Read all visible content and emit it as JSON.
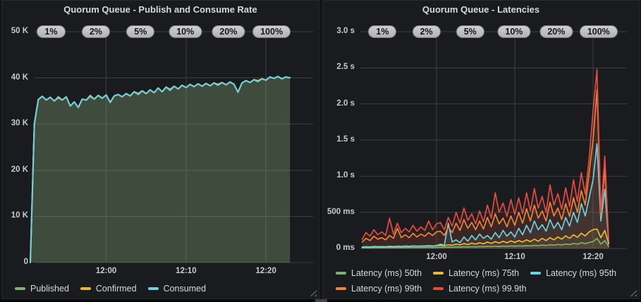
{
  "chart_data": [
    {
      "type": "area",
      "title": "Quorum Queue - Publish and Consume Rate",
      "ylim": [
        0,
        50000
      ],
      "y_ticks": [
        {
          "value": 0,
          "label": "0"
        },
        {
          "value": 10000,
          "label": "10 K"
        },
        {
          "value": 20000,
          "label": "20 K"
        },
        {
          "value": 30000,
          "label": "30 K"
        },
        {
          "value": 40000,
          "label": "40 K"
        },
        {
          "value": 50000,
          "label": "50 K"
        }
      ],
      "x_ticks": [
        {
          "minute": 9.5,
          "label": "12:00"
        },
        {
          "minute": 19.5,
          "label": "12:10"
        },
        {
          "minute": 29.5,
          "label": "12:20"
        }
      ],
      "annotations": [
        {
          "minute": 2.6,
          "label": "1%"
        },
        {
          "minute": 8.2,
          "label": "2%"
        },
        {
          "minute": 13.8,
          "label": "5%"
        },
        {
          "minute": 19.4,
          "label": "10%"
        },
        {
          "minute": 24.8,
          "label": "20%"
        },
        {
          "minute": 30.2,
          "label": "100%"
        }
      ],
      "t_start": 0,
      "t_step": 0.5,
      "legend_position": "bottom",
      "grid": true,
      "series": [
        {
          "name": "Published",
          "color": "#7EB26D",
          "values": [
            0,
            30000,
            35300,
            36000,
            35200,
            35800,
            35000,
            35700,
            35200,
            35900,
            33900,
            34800,
            33600,
            35400,
            35200,
            36000,
            35400,
            36200,
            35600,
            36300,
            34700,
            36100,
            36400,
            35900,
            36600,
            36100,
            37000,
            36400,
            37200,
            36600,
            37400,
            36800,
            37800,
            37000,
            38000,
            37300,
            38200,
            37600,
            38400,
            37900,
            38600,
            38100,
            38700,
            38200,
            38800,
            38300,
            38900,
            38400,
            39000,
            38500,
            39100,
            38600,
            36900,
            38900,
            39400,
            39000,
            39600,
            39200,
            39800,
            39500,
            40200,
            39900,
            40300,
            39800,
            40200,
            40000
          ]
        },
        {
          "name": "Confirmed",
          "color": "#EAB839",
          "values": [
            0,
            30000,
            35300,
            36000,
            35200,
            35800,
            35000,
            35900,
            35200,
            35900,
            33900,
            34800,
            33600,
            35400,
            35200,
            36200,
            35400,
            36200,
            35600,
            36300,
            34700,
            36100,
            36400,
            35900,
            36600,
            36100,
            37000,
            36600,
            37200,
            36600,
            37400,
            36800,
            37800,
            37000,
            38000,
            37500,
            38200,
            37600,
            38400,
            37900,
            38600,
            38100,
            38700,
            38200,
            38800,
            38300,
            38900,
            38600,
            39000,
            38500,
            39100,
            38600,
            36900,
            38900,
            39400,
            39000,
            39600,
            39400,
            39800,
            39500,
            40200,
            39900,
            40300,
            39800,
            40200,
            40000
          ]
        },
        {
          "name": "Consumed",
          "color": "#6ED0E0",
          "values": [
            0,
            30000,
            35300,
            36000,
            35200,
            35800,
            35000,
            35700,
            35200,
            35900,
            33900,
            34800,
            33600,
            35400,
            35200,
            36000,
            35400,
            36200,
            35600,
            36300,
            34700,
            36100,
            36400,
            35900,
            36600,
            36100,
            37000,
            36400,
            37200,
            36600,
            37400,
            36800,
            37800,
            37000,
            38000,
            37300,
            38200,
            37600,
            38400,
            37900,
            38600,
            38100,
            38700,
            38200,
            38800,
            38300,
            38900,
            38400,
            39000,
            38500,
            39100,
            38600,
            36900,
            38900,
            39400,
            39000,
            39600,
            39200,
            39800,
            39500,
            40200,
            39900,
            40300,
            39800,
            40200,
            40000
          ]
        }
      ]
    },
    {
      "type": "line",
      "title": "Quorum Queue - Latencies",
      "ylim": [
        0,
        3000
      ],
      "y_ticks": [
        {
          "value": 0,
          "label": "0 ms"
        },
        {
          "value": 500,
          "label": "500 ms"
        },
        {
          "value": 1000,
          "label": "1.0 s"
        },
        {
          "value": 1500,
          "label": "1.5 s"
        },
        {
          "value": 2000,
          "label": "2.0 s"
        },
        {
          "value": 2500,
          "label": "2.5 s"
        },
        {
          "value": 3000,
          "label": "3.0 s"
        }
      ],
      "x_ticks": [
        {
          "minute": 9.5,
          "label": "12:00"
        },
        {
          "minute": 19.5,
          "label": "12:10"
        },
        {
          "minute": 29.5,
          "label": "12:20"
        }
      ],
      "annotations": [
        {
          "minute": 2.6,
          "label": "1%"
        },
        {
          "minute": 8.2,
          "label": "2%"
        },
        {
          "minute": 13.8,
          "label": "5%"
        },
        {
          "minute": 19.4,
          "label": "10%"
        },
        {
          "minute": 24.8,
          "label": "20%"
        },
        {
          "minute": 30.2,
          "label": "100%"
        }
      ],
      "t_start": 0,
      "t_step": 0.5,
      "legend_position": "bottom",
      "grid": true,
      "series": [
        {
          "name": "Latency (ms) 50th",
          "color": "#7EB26D",
          "values": [
            8,
            10,
            9,
            12,
            10,
            11,
            10,
            12,
            11,
            13,
            12,
            14,
            12,
            15,
            13,
            14,
            15,
            16,
            14,
            16,
            18,
            16,
            20,
            18,
            22,
            19,
            24,
            20,
            26,
            22,
            28,
            24,
            30,
            26,
            32,
            28,
            34,
            30,
            36,
            32,
            38,
            34,
            40,
            36,
            44,
            38,
            48,
            42,
            52,
            46,
            56,
            50,
            62,
            55,
            70,
            60,
            80,
            68,
            85,
            95,
            140,
            60,
            110,
            25
          ]
        },
        {
          "name": "Latency (ms) 75th",
          "color": "#EAB839",
          "values": [
            18,
            22,
            20,
            26,
            22,
            25,
            22,
            28,
            24,
            30,
            26,
            32,
            28,
            35,
            30,
            34,
            36,
            40,
            34,
            40,
            44,
            38,
            52,
            45,
            60,
            50,
            68,
            55,
            75,
            60,
            80,
            65,
            90,
            70,
            95,
            75,
            100,
            80,
            105,
            85,
            110,
            90,
            120,
            95,
            130,
            100,
            140,
            110,
            150,
            120,
            160,
            130,
            175,
            140,
            190,
            155,
            210,
            175,
            230,
            260,
            270,
            150,
            250,
            60
          ]
        },
        {
          "name": "Latency (ms) 95th",
          "color": "#6ED0E0",
          "values": [
            20,
            24,
            22,
            28,
            25,
            27,
            24,
            30,
            27,
            32,
            28,
            34,
            30,
            36,
            32,
            35,
            33,
            38,
            34,
            40,
            60,
            45,
            350,
            90,
            120,
            80,
            160,
            100,
            180,
            120,
            200,
            140,
            180,
            130,
            220,
            150,
            250,
            170,
            230,
            160,
            280,
            190,
            320,
            220,
            380,
            260,
            330,
            240,
            400,
            280,
            360,
            260,
            430,
            310,
            500,
            360,
            620,
            450,
            700,
            950,
            1450,
            380,
            820,
            80
          ]
        },
        {
          "name": "Latency (ms) 99th",
          "color": "#EF843C",
          "values": [
            90,
            140,
            110,
            170,
            130,
            150,
            120,
            180,
            140,
            280,
            150,
            190,
            150,
            210,
            160,
            200,
            170,
            220,
            180,
            230,
            240,
            180,
            300,
            220,
            350,
            250,
            400,
            280,
            360,
            260,
            380,
            270,
            430,
            300,
            480,
            340,
            420,
            300,
            450,
            320,
            500,
            350,
            550,
            380,
            600,
            420,
            520,
            380,
            640,
            450,
            560,
            400,
            620,
            440,
            700,
            500,
            800,
            600,
            1050,
            1500,
            2200,
            450,
            1100,
            90
          ]
        },
        {
          "name": "Latency (ms) 99.9th",
          "color": "#E24D42",
          "values": [
            130,
            220,
            170,
            260,
            190,
            230,
            180,
            420,
            200,
            350,
            220,
            280,
            230,
            320,
            240,
            300,
            250,
            380,
            260,
            340,
            360,
            260,
            430,
            310,
            500,
            350,
            560,
            390,
            480,
            340,
            520,
            370,
            600,
            420,
            770,
            500,
            630,
            440,
            680,
            470,
            700,
            480,
            770,
            520,
            830,
            560,
            720,
            500,
            880,
            600,
            760,
            540,
            840,
            580,
            950,
            650,
            1050,
            750,
            1250,
            1900,
            2480,
            500,
            1280,
            110
          ]
        }
      ]
    }
  ],
  "colors": {
    "panel_bg": "#1a1b1f",
    "page_bg": "#121317",
    "grid": "#3c3e43",
    "axis_text": "#c9cacc",
    "title_text": "#d8d9da",
    "annotation_pill_bg": "#c0c0c0"
  }
}
